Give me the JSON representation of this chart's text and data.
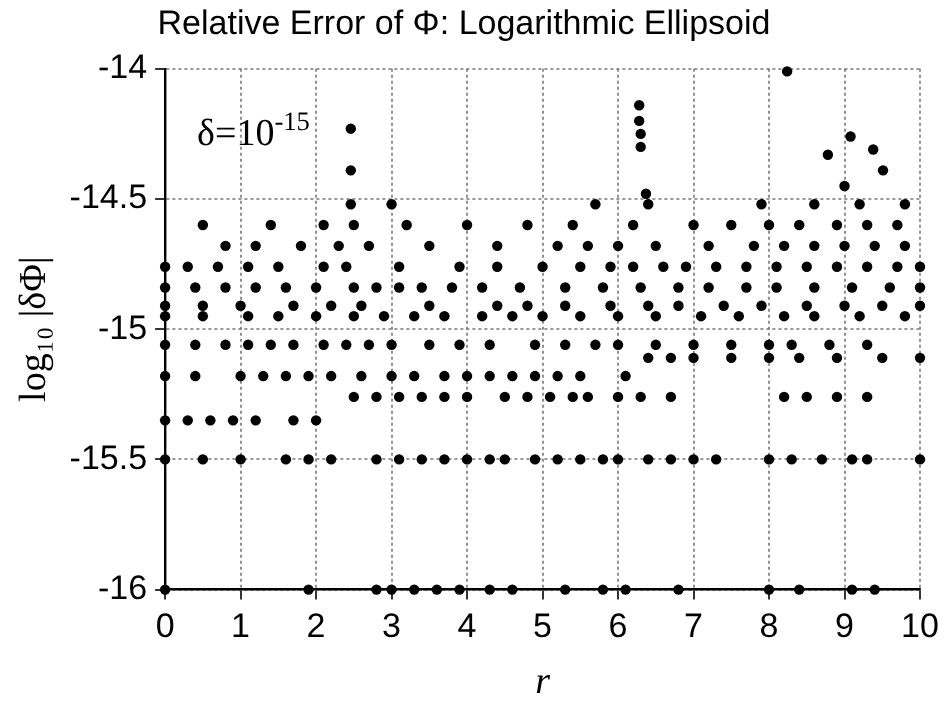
{
  "chart_data": {
    "type": "scatter",
    "title": "Relative Error of Φ: Logarithmic Ellipsoid",
    "xlabel": "r",
    "ylabel": "log₁₀ |δΦ|",
    "annotations": [
      "δ=10$^{-15}$"
    ],
    "xlim": [
      0,
      10
    ],
    "xticks": [
      0,
      1,
      2,
      3,
      4,
      5,
      6,
      7,
      8,
      9,
      10
    ],
    "ylim": [
      -16,
      -14
    ],
    "yticks": [
      -14,
      -14.5,
      -15,
      -15.5,
      -16
    ],
    "grid": true,
    "marker": "circle",
    "series": [
      {
        "color": "#000000",
        "x": [
          0,
          1.9,
          2.8,
          3.0,
          3.3,
          3.6,
          3.9,
          4.3,
          4.6,
          5.3,
          5.8,
          6.1,
          6.8,
          8.0,
          8.4,
          9.1,
          9.4
        ],
        "values": [
          -16,
          -16,
          -16,
          -16,
          -16,
          -16,
          -16,
          -16,
          -16,
          -16,
          -16,
          -16,
          -16,
          -16,
          -16,
          -16,
          -16
        ]
      },
      {
        "color": "#000000",
        "x": [
          0,
          0.5,
          1.0,
          1.6,
          1.9,
          2.2,
          2.8,
          3.1,
          3.4,
          3.7,
          4.0,
          4.3,
          4.5,
          4.9,
          5.2,
          5.5,
          5.8,
          6.0,
          6.4,
          6.7,
          7.0,
          7.3,
          8.0,
          8.3,
          8.7,
          9.1,
          9.3,
          10
        ],
        "values": [
          -15.5,
          -15.5,
          -15.5,
          -15.5,
          -15.5,
          -15.5,
          -15.5,
          -15.5,
          -15.5,
          -15.5,
          -15.5,
          -15.5,
          -15.5,
          -15.5,
          -15.5,
          -15.5,
          -15.5,
          -15.5,
          -15.5,
          -15.5,
          -15.5,
          -15.5,
          -15.5,
          -15.5,
          -15.5,
          -15.5,
          -15.5,
          -15.5
        ]
      },
      {
        "color": "#000000",
        "x": [
          0,
          0.3,
          0.6,
          0.9,
          1.2,
          1.7,
          2.0
        ],
        "values": [
          -15.35,
          -15.35,
          -15.35,
          -15.35,
          -15.35,
          -15.35,
          -15.35
        ]
      },
      {
        "color": "#000000",
        "x": [
          2.5,
          2.8,
          3.1,
          3.4,
          3.7,
          4.0,
          4.5,
          4.8,
          5.1,
          5.4,
          5.6,
          6.0,
          6.3,
          6.7,
          8.2,
          8.5,
          8.9,
          9.3
        ],
        "values": [
          -15.26,
          -15.26,
          -15.26,
          -15.26,
          -15.26,
          -15.26,
          -15.26,
          -15.26,
          -15.26,
          -15.26,
          -15.26,
          -15.26,
          -15.26,
          -15.26,
          -15.26,
          -15.26,
          -15.26,
          -15.26
        ]
      },
      {
        "color": "#000000",
        "x": [
          0,
          0.4,
          1.0,
          1.3,
          1.6,
          1.9,
          2.2,
          2.6,
          3.0,
          3.3,
          3.7,
          4.0,
          4.3,
          4.6,
          4.9,
          5.2,
          5.5,
          6.1
        ],
        "values": [
          -15.18,
          -15.18,
          -15.18,
          -15.18,
          -15.18,
          -15.18,
          -15.18,
          -15.18,
          -15.18,
          -15.18,
          -15.18,
          -15.18,
          -15.18,
          -15.18,
          -15.18,
          -15.18,
          -15.18,
          -15.18
        ]
      },
      {
        "color": "#000000",
        "x": [
          6.4,
          6.7,
          7.0,
          7.5,
          8.0,
          8.4,
          8.9,
          9.5,
          10
        ],
        "values": [
          -15.11,
          -15.11,
          -15.11,
          -15.11,
          -15.11,
          -15.11,
          -15.11,
          -15.11,
          -15.11
        ]
      },
      {
        "color": "#000000",
        "x": [
          0,
          0.4,
          0.8,
          1.1,
          1.4,
          1.7,
          2.1,
          2.4,
          2.7,
          3.0,
          3.5,
          3.9,
          4.3,
          4.9,
          5.3,
          5.7,
          6.0,
          6.5,
          7.0,
          7.5,
          8.0,
          8.3,
          8.8,
          9.3
        ],
        "values": [
          -15.06,
          -15.06,
          -15.06,
          -15.06,
          -15.06,
          -15.06,
          -15.06,
          -15.06,
          -15.06,
          -15.06,
          -15.06,
          -15.06,
          -15.06,
          -15.06,
          -15.06,
          -15.06,
          -15.06,
          -15.06,
          -15.06,
          -15.06,
          -15.06,
          -15.06,
          -15.06,
          -15.06
        ]
      },
      {
        "color": "#000000",
        "x": [
          0,
          0.5,
          1.1,
          1.5,
          2.0,
          2.5,
          2.9,
          3.3,
          3.7,
          4.2,
          4.6,
          5.0,
          5.5,
          6.0,
          6.5,
          7.1,
          7.6,
          8.2,
          8.6,
          9.2,
          9.8
        ],
        "values": [
          -14.95,
          -14.95,
          -14.95,
          -14.95,
          -14.95,
          -14.95,
          -14.95,
          -14.95,
          -14.95,
          -14.95,
          -14.95,
          -14.95,
          -14.95,
          -14.95,
          -14.95,
          -14.95,
          -14.95,
          -14.95,
          -14.95,
          -14.95,
          -14.95
        ]
      },
      {
        "color": "#000000",
        "x": [
          0,
          0.5,
          1.0,
          1.7,
          2.2,
          2.6,
          3.5,
          4.4,
          4.8,
          5.3,
          5.9,
          6.4,
          6.8,
          7.4,
          7.9,
          8.5,
          9.0,
          9.5,
          10
        ],
        "values": [
          -14.91,
          -14.91,
          -14.91,
          -14.91,
          -14.91,
          -14.91,
          -14.91,
          -14.91,
          -14.91,
          -14.91,
          -14.91,
          -14.91,
          -14.91,
          -14.91,
          -14.91,
          -14.91,
          -14.91,
          -14.91,
          -14.91
        ]
      },
      {
        "color": "#000000",
        "x": [
          0,
          0.4,
          0.8,
          1.2,
          1.6,
          2.0,
          2.5,
          2.8,
          3.1,
          3.4,
          3.8,
          4.2,
          4.7,
          5.3,
          5.8,
          6.3,
          6.8,
          7.2,
          7.7,
          8.1,
          8.6,
          9.1,
          9.6,
          10
        ],
        "values": [
          -14.84,
          -14.84,
          -14.84,
          -14.84,
          -14.84,
          -14.84,
          -14.84,
          -14.84,
          -14.84,
          -14.84,
          -14.84,
          -14.84,
          -14.84,
          -14.84,
          -14.84,
          -14.84,
          -14.84,
          -14.84,
          -14.84,
          -14.84,
          -14.84,
          -14.84,
          -14.84,
          -14.84
        ]
      },
      {
        "color": "#000000",
        "x": [
          0,
          0.3,
          0.7,
          1.1,
          1.5,
          2.1,
          2.4,
          3.1,
          3.9,
          4.4,
          5.0,
          5.5,
          5.9,
          6.2,
          6.6,
          6.9,
          7.3,
          7.7,
          8.1,
          8.5,
          8.9,
          9.3,
          9.7,
          10
        ],
        "values": [
          -14.76,
          -14.76,
          -14.76,
          -14.76,
          -14.76,
          -14.76,
          -14.76,
          -14.76,
          -14.76,
          -14.76,
          -14.76,
          -14.76,
          -14.76,
          -14.76,
          -14.76,
          -14.76,
          -14.76,
          -14.76,
          -14.76,
          -14.76,
          -14.76,
          -14.76,
          -14.76,
          -14.76
        ]
      },
      {
        "color": "#000000",
        "x": [
          0.8,
          1.2,
          1.8,
          2.3,
          2.7,
          3.5,
          4.4,
          5.2,
          5.6,
          6.0,
          6.5,
          7.2,
          7.8,
          8.2,
          8.6,
          9.0,
          9.4,
          9.8
        ],
        "values": [
          -14.68,
          -14.68,
          -14.68,
          -14.68,
          -14.68,
          -14.68,
          -14.68,
          -14.68,
          -14.68,
          -14.68,
          -14.68,
          -14.68,
          -14.68,
          -14.68,
          -14.68,
          -14.68,
          -14.68,
          -14.68
        ]
      },
      {
        "color": "#000000",
        "x": [
          0.5,
          1.4,
          2.1,
          2.5,
          3.2,
          4.0,
          4.8,
          5.4,
          6.2,
          7.0,
          7.5,
          8.0,
          8.4,
          8.9,
          9.3,
          9.7
        ],
        "values": [
          -14.6,
          -14.6,
          -14.6,
          -14.6,
          -14.6,
          -14.6,
          -14.6,
          -14.6,
          -14.6,
          -14.6,
          -14.6,
          -14.6,
          -14.6,
          -14.6,
          -14.6,
          -14.6
        ]
      },
      {
        "color": "#000000",
        "x": [
          2.46,
          3.0,
          5.7,
          6.4,
          7.9,
          8.6,
          9.2,
          9.8
        ],
        "values": [
          -14.52,
          -14.52,
          -14.52,
          -14.52,
          -14.52,
          -14.52,
          -14.52,
          -14.52
        ]
      },
      {
        "color": "#000000",
        "x": [
          2.46,
          2.46,
          6.28,
          6.28,
          6.3,
          6.3,
          8.24,
          9.08,
          9.38,
          8.78,
          9.51,
          6.37,
          9.0
        ],
        "values": [
          -14.23,
          -14.39,
          -14.14,
          -14.2,
          -14.25,
          -14.3,
          -14.01,
          -14.26,
          -14.31,
          -14.33,
          -14.39,
          -14.48,
          -14.45
        ]
      }
    ]
  }
}
